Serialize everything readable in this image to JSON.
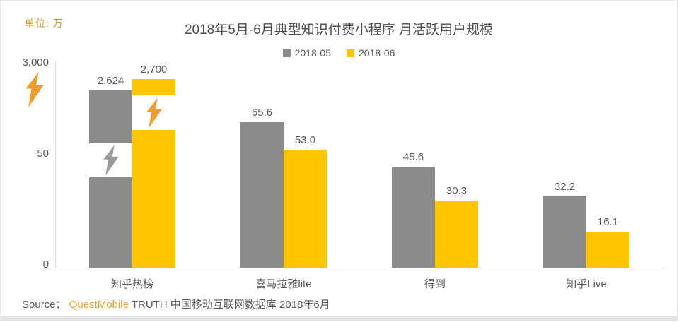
{
  "chart": {
    "unit_label": "单位: 万",
    "title": "2018年5月-6月典型知识付费小程序 月活跃用户规模",
    "source": {
      "prefix": "Source：",
      "brand": "QuestMobile",
      "rest": " TRUTH 中国移动互联网数据库 2018年6月"
    }
  },
  "chart_data": {
    "type": "bar",
    "title": "2018年5月-6月典型知识付费小程序 月活跃用户规模",
    "unit": "万",
    "categories": [
      "知乎热榜",
      "喜马拉雅lite",
      "得到",
      "知乎Live"
    ],
    "series": [
      {
        "name": "2018-05",
        "color": "#8b8b8b",
        "values": [
          2624,
          65.6,
          45.6,
          32.2
        ],
        "labels": [
          "2,624",
          "65.6",
          "45.6",
          "32.2"
        ]
      },
      {
        "name": "2018-06",
        "color": "#ffc502",
        "values": [
          2700,
          53.0,
          30.3,
          16.1
        ],
        "labels": [
          "2,700",
          "53.0",
          "30.3",
          "16.1"
        ]
      }
    ],
    "y_ticks": [
      "3,000",
      "50",
      "0"
    ],
    "ylim_note": "axis broken between 50 and 3,000; first category bars carry break symbols",
    "axis_break": true,
    "legend_position": "top-center",
    "grid": false,
    "colors": {
      "bar_gray": "#8b8b8b",
      "bar_yellow": "#ffc502",
      "bolt_orange": "#ef9d2e",
      "bolt_gray": "#9b9b9b",
      "label_gray": "#595959",
      "axis_line": "#dcdcdc",
      "accent_orange": "#e2a23c"
    }
  }
}
